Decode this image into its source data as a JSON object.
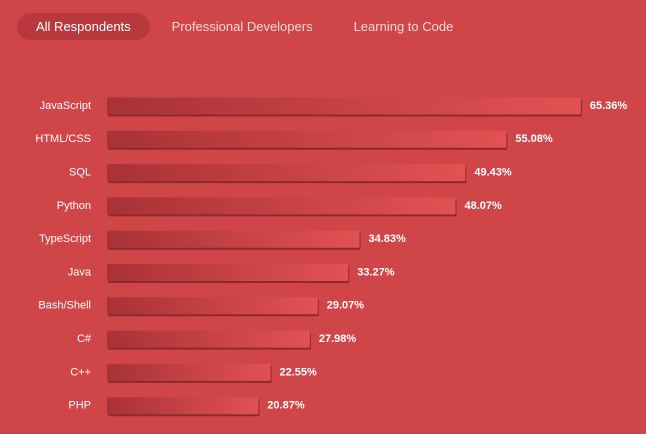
{
  "tabs": [
    "All Respondents",
    "Professional Developers",
    "Learning to Code"
  ],
  "chart_data": {
    "type": "bar",
    "orientation": "horizontal",
    "categories": [
      "JavaScript",
      "HTML/CSS",
      "SQL",
      "Python",
      "TypeScript",
      "Java",
      "Bash/Shell",
      "C#",
      "C++",
      "PHP"
    ],
    "values": [
      65.36,
      55.08,
      49.43,
      48.07,
      34.83,
      33.27,
      29.07,
      27.98,
      22.55,
      20.87
    ],
    "value_labels": [
      "65.36%",
      "55.08%",
      "49.43%",
      "48.07%",
      "34.83%",
      "33.27%",
      "29.07%",
      "27.98%",
      "22.55%",
      "20.87%"
    ],
    "color": "#d94749"
  }
}
